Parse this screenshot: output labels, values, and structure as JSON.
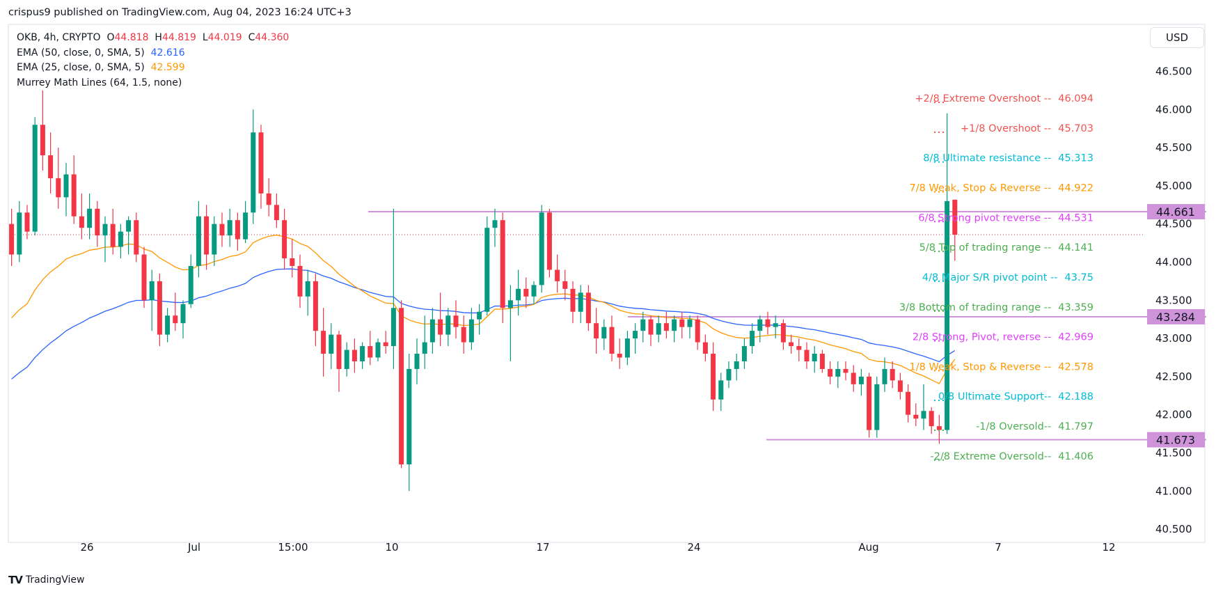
{
  "publish_line": "crispus9 published on TradingView.com, Aug 04, 2023 16:24 UTC+3",
  "legend": {
    "symbol": "OKB, 4h, CRYPTO",
    "o_label": "O",
    "o": "44.818",
    "h_label": "H",
    "h": "44.819",
    "l_label": "L",
    "l": "44.019",
    "c_label": "C",
    "c": "44.360",
    "ema50_label": "EMA (50, close, 0, SMA, 5)",
    "ema50_value": "42.616",
    "ema25_label": "EMA (25, close, 0, SMA, 5)",
    "ema25_value": "42.599",
    "murrey_label": "Murrey Math Lines (64, 1.5, none)"
  },
  "currency_button": "USD",
  "footer_logo": "TradingView",
  "colors": {
    "up": "#089981",
    "down": "#f23645",
    "ema50": "#2962ff",
    "ema25": "#ff9800",
    "hline": "#ce93d8"
  },
  "chart_data": {
    "type": "candlestick",
    "symbol": "OKB",
    "interval": "4h",
    "ylim": [
      40.3,
      46.7
    ],
    "y_ticks": [
      "46.500",
      "46.000",
      "45.500",
      "45.000",
      "44.500",
      "44.000",
      "43.500",
      "43.000",
      "42.500",
      "42.000",
      "41.500",
      "41.000",
      "40.500"
    ],
    "x_ticks": [
      "26",
      "Jul",
      "15:00",
      "10",
      "17",
      "24",
      "Aug",
      "7",
      "12"
    ],
    "last_price": 44.36,
    "candles_ohlc": [
      [
        44.5,
        44.7,
        43.95,
        44.1
      ],
      [
        44.1,
        44.8,
        44.0,
        44.65
      ],
      [
        44.65,
        44.75,
        44.3,
        44.4
      ],
      [
        44.4,
        45.9,
        44.35,
        45.8
      ],
      [
        45.8,
        46.25,
        45.2,
        45.4
      ],
      [
        45.4,
        45.7,
        44.9,
        45.1
      ],
      [
        45.1,
        45.5,
        44.7,
        44.85
      ],
      [
        44.85,
        45.3,
        44.6,
        45.15
      ],
      [
        45.15,
        45.4,
        44.5,
        44.6
      ],
      [
        44.6,
        44.9,
        44.3,
        44.45
      ],
      [
        44.45,
        44.9,
        44.3,
        44.7
      ],
      [
        44.7,
        44.8,
        44.2,
        44.35
      ],
      [
        44.35,
        44.6,
        44.0,
        44.5
      ],
      [
        44.5,
        44.7,
        44.1,
        44.2
      ],
      [
        44.2,
        44.5,
        44.05,
        44.4
      ],
      [
        44.4,
        44.6,
        44.1,
        44.55
      ],
      [
        44.55,
        44.65,
        44.0,
        44.1
      ],
      [
        44.1,
        44.2,
        43.4,
        43.5
      ],
      [
        43.5,
        43.9,
        43.1,
        43.75
      ],
      [
        43.75,
        43.85,
        42.9,
        43.05
      ],
      [
        43.05,
        43.4,
        42.95,
        43.3
      ],
      [
        43.3,
        43.6,
        43.1,
        43.2
      ],
      [
        43.2,
        43.5,
        43.0,
        43.45
      ],
      [
        43.45,
        44.1,
        43.4,
        43.95
      ],
      [
        43.95,
        44.8,
        43.8,
        44.6
      ],
      [
        44.6,
        44.75,
        43.9,
        44.1
      ],
      [
        44.1,
        44.6,
        43.95,
        44.5
      ],
      [
        44.5,
        44.65,
        44.2,
        44.35
      ],
      [
        44.35,
        44.7,
        44.2,
        44.55
      ],
      [
        44.55,
        44.65,
        44.15,
        44.3
      ],
      [
        44.3,
        44.8,
        44.25,
        44.65
      ],
      [
        44.65,
        46.0,
        44.5,
        45.7
      ],
      [
        45.7,
        45.8,
        44.7,
        44.9
      ],
      [
        44.9,
        45.1,
        44.6,
        44.75
      ],
      [
        44.75,
        44.9,
        44.45,
        44.55
      ],
      [
        44.55,
        44.7,
        43.9,
        44.05
      ],
      [
        44.05,
        44.3,
        43.8,
        43.95
      ],
      [
        43.95,
        44.1,
        43.4,
        43.55
      ],
      [
        43.55,
        43.9,
        43.3,
        43.75
      ],
      [
        43.75,
        43.85,
        42.9,
        43.1
      ],
      [
        43.1,
        43.4,
        42.5,
        42.8
      ],
      [
        42.8,
        43.2,
        42.6,
        43.05
      ],
      [
        43.05,
        43.1,
        42.3,
        42.6
      ],
      [
        42.6,
        42.95,
        42.5,
        42.85
      ],
      [
        42.85,
        43.0,
        42.55,
        42.7
      ],
      [
        42.7,
        42.95,
        42.6,
        42.9
      ],
      [
        42.9,
        43.1,
        42.65,
        42.75
      ],
      [
        42.75,
        43.0,
        42.7,
        42.95
      ],
      [
        42.95,
        43.1,
        42.8,
        42.9
      ],
      [
        42.9,
        44.7,
        42.6,
        43.4
      ],
      [
        43.4,
        43.5,
        41.3,
        41.35
      ],
      [
        41.35,
        42.8,
        41.0,
        42.6
      ],
      [
        42.6,
        43.0,
        42.4,
        42.8
      ],
      [
        42.8,
        43.3,
        42.6,
        42.95
      ],
      [
        42.95,
        43.4,
        42.8,
        43.25
      ],
      [
        43.25,
        43.6,
        42.9,
        43.05
      ],
      [
        43.05,
        43.4,
        42.9,
        43.3
      ],
      [
        43.3,
        43.5,
        43.0,
        43.15
      ],
      [
        43.15,
        43.3,
        42.8,
        42.95
      ],
      [
        42.95,
        43.4,
        42.85,
        43.25
      ],
      [
        43.25,
        43.45,
        43.05,
        43.35
      ],
      [
        43.35,
        44.6,
        43.3,
        44.45
      ],
      [
        44.45,
        44.7,
        44.2,
        44.55
      ],
      [
        44.55,
        44.65,
        43.2,
        43.4
      ],
      [
        43.4,
        43.7,
        42.7,
        43.5
      ],
      [
        43.5,
        43.9,
        43.3,
        43.65
      ],
      [
        43.65,
        43.8,
        43.4,
        43.55
      ],
      [
        43.55,
        43.75,
        43.45,
        43.7
      ],
      [
        43.7,
        44.75,
        43.6,
        44.65
      ],
      [
        44.65,
        44.7,
        43.8,
        43.9
      ],
      [
        43.9,
        44.1,
        43.6,
        43.75
      ],
      [
        43.75,
        43.9,
        43.5,
        43.65
      ],
      [
        43.65,
        43.75,
        43.2,
        43.35
      ],
      [
        43.35,
        43.7,
        43.2,
        43.6
      ],
      [
        43.6,
        43.7,
        43.1,
        43.2
      ],
      [
        43.2,
        43.4,
        42.8,
        43.0
      ],
      [
        43.0,
        43.25,
        42.85,
        43.15
      ],
      [
        43.15,
        43.3,
        42.7,
        42.8
      ],
      [
        42.8,
        43.0,
        42.6,
        42.75
      ],
      [
        42.75,
        43.1,
        42.65,
        43.0
      ],
      [
        43.0,
        43.2,
        42.8,
        43.1
      ],
      [
        43.1,
        43.35,
        42.95,
        43.25
      ],
      [
        43.25,
        43.3,
        42.9,
        43.05
      ],
      [
        43.05,
        43.3,
        42.95,
        43.2
      ],
      [
        43.2,
        43.35,
        43.0,
        43.1
      ],
      [
        43.1,
        43.3,
        42.95,
        43.25
      ],
      [
        43.25,
        43.35,
        43.0,
        43.15
      ],
      [
        43.15,
        43.3,
        43.0,
        43.25
      ],
      [
        43.25,
        43.3,
        42.85,
        42.95
      ],
      [
        42.95,
        43.05,
        42.7,
        42.8
      ],
      [
        42.8,
        42.95,
        42.05,
        42.2
      ],
      [
        42.2,
        42.55,
        42.05,
        42.45
      ],
      [
        42.45,
        42.7,
        42.35,
        42.6
      ],
      [
        42.6,
        42.8,
        42.45,
        42.7
      ],
      [
        42.7,
        43.0,
        42.6,
        42.9
      ],
      [
        42.9,
        43.2,
        42.8,
        43.1
      ],
      [
        43.1,
        43.3,
        42.95,
        43.25
      ],
      [
        43.25,
        43.35,
        43.05,
        43.15
      ],
      [
        43.15,
        43.3,
        43.0,
        43.2
      ],
      [
        43.2,
        43.25,
        42.85,
        42.95
      ],
      [
        42.95,
        43.05,
        42.8,
        42.9
      ],
      [
        42.9,
        43.0,
        42.7,
        42.85
      ],
      [
        42.85,
        42.95,
        42.6,
        42.7
      ],
      [
        42.7,
        42.9,
        42.55,
        42.8
      ],
      [
        42.8,
        42.85,
        42.55,
        42.6
      ],
      [
        42.6,
        42.7,
        42.4,
        42.5
      ],
      [
        42.5,
        42.7,
        42.35,
        42.6
      ],
      [
        42.6,
        42.7,
        42.45,
        42.55
      ],
      [
        42.55,
        42.65,
        42.3,
        42.4
      ],
      [
        42.4,
        42.6,
        42.25,
        42.5
      ],
      [
        42.5,
        42.55,
        41.7,
        41.8
      ],
      [
        41.8,
        42.5,
        41.7,
        42.4
      ],
      [
        42.4,
        42.75,
        42.3,
        42.6
      ],
      [
        42.6,
        42.7,
        42.35,
        42.45
      ],
      [
        42.45,
        42.55,
        42.2,
        42.3
      ],
      [
        42.3,
        42.4,
        41.9,
        42.0
      ],
      [
        42.0,
        42.15,
        41.85,
        41.95
      ],
      [
        41.95,
        42.4,
        41.8,
        42.05
      ],
      [
        42.05,
        42.1,
        41.75,
        41.85
      ],
      [
        41.85,
        42.0,
        41.62,
        41.8
      ],
      [
        41.8,
        45.95,
        41.75,
        44.8
      ],
      [
        44.818,
        44.819,
        44.019,
        44.36
      ]
    ],
    "murrey_lines": [
      {
        "label": "+2/8 Extreme Overshoot --",
        "value": "46.094",
        "color": "#f05350"
      },
      {
        "label": "+1/8 Overshoot --",
        "value": "45.703",
        "color": "#f05350"
      },
      {
        "label": "8/8 Ultimate resistance --",
        "value": "45.313",
        "color": "#00bcd4"
      },
      {
        "label": "7/8 Weak, Stop & Reverse --",
        "value": "44.922",
        "color": "#ff9800"
      },
      {
        "label": "6/8 Strong pivot reverse --",
        "value": "44.531",
        "color": "#e040fb"
      },
      {
        "label": "5/8 Top of trading range --",
        "value": "44.141",
        "color": "#4caf50"
      },
      {
        "label": "4/8 Major S/R pivot point --",
        "value": "43.75",
        "color": "#00bcd4"
      },
      {
        "label": "3/8 Bottom of trading range --",
        "value": "43.359",
        "color": "#4caf50"
      },
      {
        "label": "2/8 Strong, Pivot, reverse --",
        "value": "42.969",
        "color": "#e040fb"
      },
      {
        "label": "1/8 Weak, Stop & Reverse --",
        "value": "42.578",
        "color": "#ff9800"
      },
      {
        "label": "0/8 Ultimate Support--",
        "value": "42.188",
        "color": "#00bcd4"
      },
      {
        "label": "-1/8 Oversold--",
        "value": "41.797",
        "color": "#4caf50"
      },
      {
        "label": "-2/8 Extreme Oversold--",
        "value": "41.406",
        "color": "#4caf50"
      }
    ],
    "horizontal_lines": [
      {
        "value": "44.661"
      },
      {
        "value": "43.284"
      },
      {
        "value": "41.673"
      }
    ]
  }
}
